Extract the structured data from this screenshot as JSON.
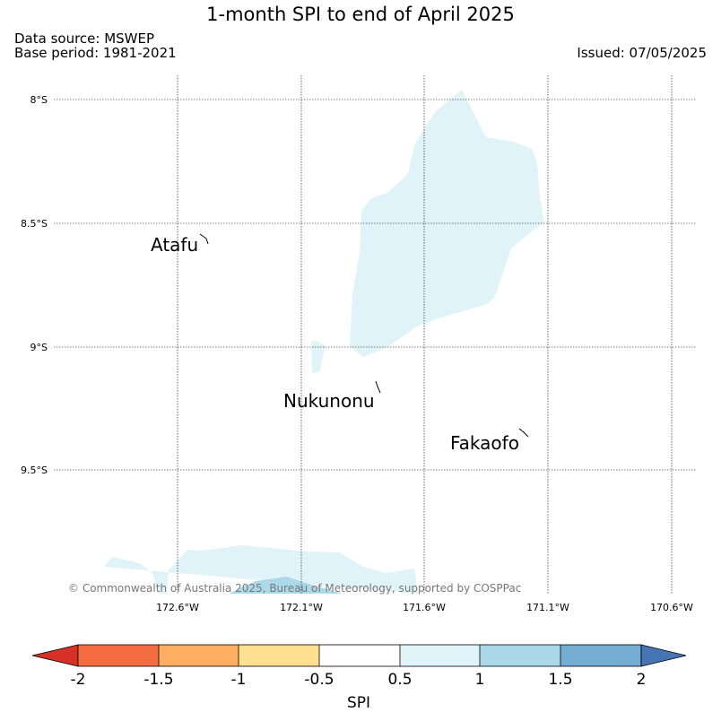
{
  "title": "1-month SPI to end of April 2025",
  "data_source": "Data source: MSWEP",
  "base_period": "Base period: 1981-2021",
  "issued": "Issued: 07/05/2025",
  "copyright": "© Commonwealth of Australia 2025, Bureau of Meteorology, supported by COSPPac",
  "lat_labels": [
    "8°S",
    "8.5°S",
    "9°S",
    "9.5°S"
  ],
  "lon_labels": [
    "172.6°W",
    "172.1°W",
    "171.6°W",
    "171.1°W",
    "170.6°W"
  ],
  "places": [
    {
      "name": "Atafu"
    },
    {
      "name": "Nukunonu"
    },
    {
      "name": "Fakaofo"
    }
  ],
  "colorbar": {
    "label": "SPI",
    "ticks": [
      "-2",
      "-1.5",
      "-1",
      "-0.5",
      "0.5",
      "1",
      "1.5",
      "2"
    ],
    "colors": {
      "below_min": "#d73027",
      "-2_-1.5": "#f46d43",
      "-1.5_-1": "#fdae61",
      "-1_-0.5": "#fee090",
      "-0.5_0.5": "#ffffff",
      "0.5_1": "#e0f3f8",
      "1_1.5": "#abd9e9",
      "1.5_2": "#74add1",
      "above_max": "#4575b4"
    }
  }
}
